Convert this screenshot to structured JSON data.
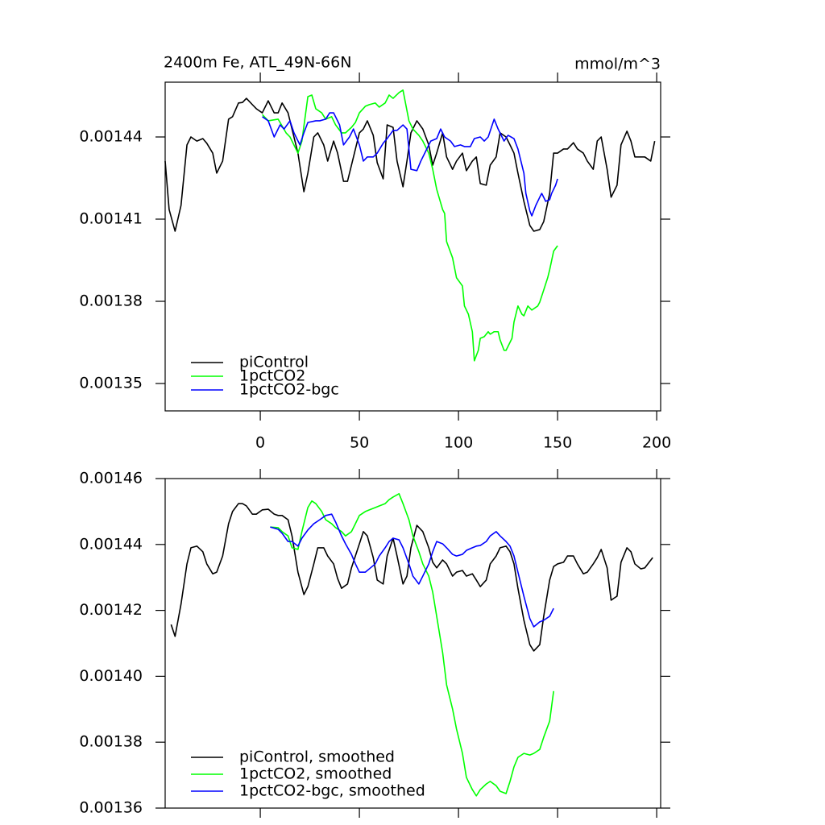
{
  "chart_data": [
    {
      "type": "line",
      "title": "2400m Fe, ATL_49N-66N",
      "units": "mmol/m^3",
      "xlim": [
        -48,
        202
      ],
      "xticks": [
        0,
        50,
        100,
        150,
        200
      ],
      "ylim": [
        0.00134,
        0.00146
      ],
      "yticks": [
        0.00144,
        0.00141,
        0.00138,
        0.00135
      ],
      "legend": "lower-left",
      "series": [
        {
          "name": "piControl",
          "color": "#000000",
          "x": [
            -48,
            -46,
            -43,
            -40,
            -37,
            -35,
            -32,
            -29,
            -27,
            -24,
            -22,
            -19,
            -16,
            -14,
            -11,
            -9,
            -7,
            -4,
            -2,
            1,
            4,
            7,
            9,
            11,
            14,
            16,
            19,
            22,
            24,
            27,
            29,
            32,
            34,
            37,
            39,
            42,
            44,
            46,
            50,
            52,
            54,
            57,
            59,
            62,
            64,
            67,
            69,
            72,
            74,
            76,
            79,
            82,
            85,
            87,
            89,
            92,
            94,
            97,
            99,
            102,
            104,
            107,
            109,
            111,
            114,
            116,
            119,
            121,
            124,
            126,
            128,
            130,
            133,
            136,
            138,
            141,
            143,
            146,
            148,
            150,
            153,
            155,
            158,
            160,
            163,
            165,
            168,
            170,
            172,
            175,
            177,
            180,
            182,
            185,
            187,
            189,
            192,
            194,
            197,
            199
          ],
          "values": [
            0.0014312,
            0.0014135,
            0.0014056,
            0.001415,
            0.0014371,
            0.00144,
            0.0014385,
            0.0014394,
            0.0014377,
            0.0014341,
            0.0014268,
            0.0014312,
            0.0014465,
            0.0014474,
            0.0014524,
            0.0014526,
            0.0014541,
            0.0014518,
            0.0014503,
            0.0014488,
            0.0014532,
            0.0014488,
            0.0014488,
            0.0014524,
            0.0014488,
            0.0014429,
            0.0014341,
            0.00142,
            0.0014268,
            0.00144,
            0.0014415,
            0.0014371,
            0.0014312,
            0.0014385,
            0.0014341,
            0.0014238,
            0.0014238,
            0.0014297,
            0.0014415,
            0.0014429,
            0.0014459,
            0.0014406,
            0.0014306,
            0.0014247,
            0.0014444,
            0.0014435,
            0.0014312,
            0.0014218,
            0.0014312,
            0.0014415,
            0.0014459,
            0.0014429,
            0.0014371,
            0.0014297,
            0.0014341,
            0.0014415,
            0.0014327,
            0.0014282,
            0.0014312,
            0.0014341,
            0.0014277,
            0.0014312,
            0.0014327,
            0.001423,
            0.0014224,
            0.0014297,
            0.0014327,
            0.0014415,
            0.00144,
            0.0014371,
            0.0014341,
            0.0014268,
            0.0014165,
            0.0014077,
            0.0014056,
            0.0014062,
            0.0014091,
            0.0014194,
            0.0014341,
            0.0014341,
            0.0014356,
            0.0014356,
            0.0014379,
            0.0014356,
            0.0014341,
            0.0014312,
            0.0014282,
            0.0014385,
            0.00144,
            0.0014282,
            0.001418,
            0.0014224,
            0.0014371,
            0.0014421,
            0.0014385,
            0.0014327,
            0.0014327,
            0.0014327,
            0.0014312,
            0.0014385
          ]
        },
        {
          "name": "1pctCO2",
          "color": "#00ff00",
          "x": [
            1,
            4,
            9,
            13,
            15,
            19,
            21,
            24,
            26,
            28,
            31,
            33,
            36,
            38,
            41,
            43,
            46,
            48,
            50,
            53,
            55,
            58,
            60,
            63,
            65,
            67,
            70,
            72,
            75,
            77,
            80,
            82,
            85,
            87,
            89,
            92,
            93,
            94,
            97,
            99,
            102,
            103,
            105,
            107,
            108,
            110,
            111,
            113,
            115,
            116,
            118,
            120,
            121,
            123,
            124,
            127,
            128,
            130,
            132,
            133,
            135,
            137,
            140,
            141,
            143,
            145,
            146,
            148,
            150
          ],
          "values": [
            0.0014482,
            0.0014459,
            0.0014465,
            0.0014415,
            0.00144,
            0.0014341,
            0.0014385,
            0.0014547,
            0.0014553,
            0.0014503,
            0.0014488,
            0.0014465,
            0.0014474,
            0.0014444,
            0.0014415,
            0.0014415,
            0.0014435,
            0.0014453,
            0.0014488,
            0.0014512,
            0.0014518,
            0.0014524,
            0.0014509,
            0.0014524,
            0.0014553,
            0.0014541,
            0.0014562,
            0.0014571,
            0.0014459,
            0.0014429,
            0.0014406,
            0.0014385,
            0.0014341,
            0.0014282,
            0.0014209,
            0.0014135,
            0.0014121,
            0.0014018,
            0.0013959,
            0.0013886,
            0.0013856,
            0.0013783,
            0.0013753,
            0.0013689,
            0.0013583,
            0.0013621,
            0.0013665,
            0.0013671,
            0.0013689,
            0.001368,
            0.0013689,
            0.0013689,
            0.0013659,
            0.0013621,
            0.0013621,
            0.0013665,
            0.0013724,
            0.0013783,
            0.0013753,
            0.0013747,
            0.0013783,
            0.0013768,
            0.0013783,
            0.0013797,
            0.0013841,
            0.0013886,
            0.0013915,
            0.0013983,
            0.0014003
          ]
        },
        {
          "name": "1pctCO2-bgc",
          "color": "#0000ff",
          "x": [
            1,
            4,
            7,
            10,
            12,
            15,
            17,
            20,
            22,
            24,
            28,
            30,
            33,
            35,
            37,
            40,
            42,
            45,
            47,
            50,
            52,
            54,
            57,
            59,
            62,
            64,
            67,
            69,
            72,
            74,
            76,
            79,
            81,
            84,
            86,
            89,
            91,
            93,
            96,
            98,
            101,
            103,
            106,
            108,
            111,
            113,
            115,
            118,
            120,
            123,
            125,
            128,
            130,
            133,
            134,
            136,
            137,
            139,
            141,
            142,
            144,
            146,
            147,
            149,
            150
          ],
          "values": [
            0.0014474,
            0.0014459,
            0.00144,
            0.0014444,
            0.0014429,
            0.0014459,
            0.0014415,
            0.0014371,
            0.0014415,
            0.0014453,
            0.0014459,
            0.0014459,
            0.0014465,
            0.0014488,
            0.0014488,
            0.0014444,
            0.0014371,
            0.00144,
            0.0014429,
            0.0014371,
            0.0014312,
            0.0014327,
            0.0014327,
            0.0014341,
            0.0014377,
            0.0014394,
            0.0014424,
            0.0014424,
            0.0014444,
            0.0014429,
            0.0014282,
            0.0014277,
            0.0014312,
            0.0014356,
            0.0014385,
            0.0014394,
            0.0014429,
            0.00144,
            0.0014385,
            0.0014365,
            0.0014371,
            0.0014365,
            0.0014365,
            0.0014394,
            0.00144,
            0.0014385,
            0.00144,
            0.0014465,
            0.0014429,
            0.0014385,
            0.0014406,
            0.0014394,
            0.0014356,
            0.0014268,
            0.0014194,
            0.001413,
            0.0014112,
            0.001415,
            0.001418,
            0.0014194,
            0.0014165,
            0.0014171,
            0.0014194,
            0.0014224,
            0.0014247
          ]
        }
      ]
    },
    {
      "type": "line",
      "xlim": [
        -48,
        202
      ],
      "xticks": [
        0,
        50,
        100,
        150,
        200
      ],
      "xtick_labels": false,
      "ylim": [
        0.00136,
        0.00146
      ],
      "yticks": [
        0.00146,
        0.00144,
        0.00142,
        {
          "value": 0.0014,
          "label": "0.00140"
        },
        0.00138,
        0.00136
      ],
      "legend": "lower-left",
      "series": [
        {
          "name": "piControl, smoothed",
          "color": "#000000",
          "x": [
            -45,
            -43,
            -40,
            -37,
            -35,
            -32,
            -29,
            -27,
            -24,
            -22,
            -19,
            -16,
            -14,
            -11,
            -9,
            -7,
            -4,
            -2,
            1,
            4,
            7,
            9,
            11,
            14,
            16,
            19,
            22,
            24,
            27,
            29,
            32,
            34,
            37,
            39,
            41,
            44,
            46,
            50,
            52,
            54,
            57,
            59,
            62,
            64,
            67,
            69,
            72,
            74,
            76,
            79,
            82,
            85,
            87,
            89,
            92,
            94,
            97,
            99,
            102,
            104,
            107,
            109,
            111,
            114,
            116,
            119,
            121,
            124,
            126,
            128,
            130,
            133,
            136,
            138,
            141,
            143,
            146,
            148,
            150,
            153,
            155,
            158,
            160,
            163,
            165,
            168,
            170,
            172,
            175,
            177,
            180,
            182,
            185,
            187,
            189,
            192,
            194,
            198
          ],
          "values": [
            0.0014157,
            0.0014121,
            0.0014219,
            0.0014341,
            0.001439,
            0.0014395,
            0.0014378,
            0.0014341,
            0.0014311,
            0.0014316,
            0.0014365,
            0.0014463,
            0.00145,
            0.0014524,
            0.0014524,
            0.0014517,
            0.0014492,
            0.0014492,
            0.0014505,
            0.0014507,
            0.0014492,
            0.0014488,
            0.0014488,
            0.0014475,
            0.0014426,
            0.0014316,
            0.0014248,
            0.0014272,
            0.0014341,
            0.001439,
            0.001439,
            0.0014365,
            0.0014341,
            0.0014297,
            0.0014267,
            0.001428,
            0.0014329,
            0.0014402,
            0.0014439,
            0.0014426,
            0.001436,
            0.0014292,
            0.001428,
            0.0014365,
            0.0014419,
            0.0014365,
            0.001428,
            0.0014304,
            0.001439,
            0.0014458,
            0.0014439,
            0.001439,
            0.0014346,
            0.0014329,
            0.0014353,
            0.0014341,
            0.0014304,
            0.0014316,
            0.0014321,
            0.0014304,
            0.0014311,
            0.0014292,
            0.0014272,
            0.0014292,
            0.0014341,
            0.0014365,
            0.001439,
            0.0014395,
            0.0014378,
            0.0014341,
            0.0014267,
            0.001417,
            0.0014096,
            0.0014077,
            0.0014096,
            0.0014182,
            0.0014292,
            0.0014333,
            0.0014341,
            0.0014346,
            0.0014365,
            0.0014365,
            0.0014341,
            0.0014311,
            0.0014316,
            0.0014341,
            0.001436,
            0.0014385,
            0.0014329,
            0.0014231,
            0.0014243,
            0.0014346,
            0.001439,
            0.0014378,
            0.0014341,
            0.0014326,
            0.0014329,
            0.001436
          ]
        },
        {
          "name": "1pctCO2, smoothed",
          "color": "#00ff00",
          "x": [
            5,
            9,
            11,
            14,
            16,
            19,
            21,
            24,
            26,
            28,
            31,
            33,
            36,
            38,
            41,
            43,
            46,
            48,
            50,
            53,
            55,
            58,
            60,
            63,
            65,
            67,
            70,
            72,
            75,
            77,
            80,
            82,
            85,
            87,
            89,
            92,
            94,
            97,
            99,
            102,
            104,
            107,
            109,
            111,
            114,
            116,
            119,
            121,
            124,
            126,
            128,
            130,
            133,
            136,
            138,
            141,
            143,
            146,
            148
          ],
          "values": [
            0.0014453,
            0.0014451,
            0.0014439,
            0.0014426,
            0.001439,
            0.0014385,
            0.0014439,
            0.0014512,
            0.0014532,
            0.0014524,
            0.00145,
            0.0014475,
            0.0014463,
            0.0014451,
            0.0014439,
            0.0014426,
            0.0014439,
            0.0014463,
            0.0014488,
            0.00145,
            0.0014505,
            0.0014512,
            0.0014517,
            0.0014524,
            0.0014536,
            0.0014544,
            0.0014554,
            0.0014524,
            0.0014475,
            0.0014426,
            0.0014378,
            0.0014341,
            0.0014304,
            0.0014255,
            0.0014182,
            0.0014072,
            0.0013974,
            0.0013901,
            0.001384,
            0.0013766,
            0.0013693,
            0.0013656,
            0.0013637,
            0.0013656,
            0.0013673,
            0.0013681,
            0.0013668,
            0.0013651,
            0.0013644,
            0.0013681,
            0.0013725,
            0.0013754,
            0.0013766,
            0.0013761,
            0.0013766,
            0.0013778,
            0.0013815,
            0.0013864,
            0.0013955
          ]
        },
        {
          "name": "1pctCO2-bgc, smoothed",
          "color": "#0000ff",
          "x": [
            5,
            9,
            11,
            14,
            16,
            19,
            21,
            24,
            27,
            30,
            33,
            36,
            38,
            41,
            43,
            46,
            48,
            50,
            53,
            55,
            58,
            60,
            63,
            65,
            67,
            70,
            72,
            75,
            77,
            80,
            82,
            85,
            87,
            89,
            92,
            94,
            97,
            99,
            102,
            104,
            107,
            109,
            111,
            114,
            116,
            119,
            121,
            124,
            126,
            128,
            130,
            133,
            136,
            138,
            141,
            143,
            146,
            148
          ],
          "values": [
            0.0014453,
            0.0014446,
            0.0014434,
            0.0014409,
            0.0014409,
            0.0014395,
            0.0014419,
            0.0014444,
            0.0014463,
            0.0014475,
            0.0014488,
            0.0014492,
            0.0014468,
            0.0014426,
            0.0014402,
            0.001437,
            0.0014341,
            0.0014316,
            0.0014316,
            0.0014326,
            0.0014341,
            0.0014365,
            0.001439,
            0.0014409,
            0.0014419,
            0.0014414,
            0.001439,
            0.0014341,
            0.0014304,
            0.001428,
            0.0014304,
            0.0014341,
            0.0014378,
            0.0014409,
            0.0014402,
            0.001439,
            0.001437,
            0.0014365,
            0.001437,
            0.0014382,
            0.001439,
            0.0014395,
            0.0014397,
            0.0014409,
            0.0014426,
            0.0014439,
            0.0014426,
            0.0014409,
            0.0014395,
            0.0014365,
            0.0014316,
            0.0014243,
            0.0014175,
            0.001415,
            0.0014165,
            0.001417,
            0.0014182,
            0.0014206
          ]
        }
      ]
    }
  ]
}
